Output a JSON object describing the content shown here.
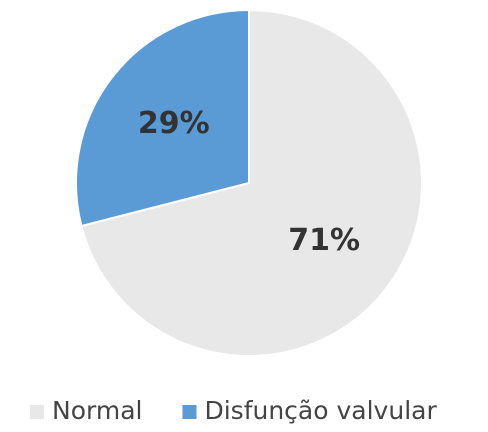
{
  "chart_data": {
    "type": "pie",
    "categories": [
      "Normal",
      "Disfunção valvular"
    ],
    "values": [
      71,
      29
    ],
    "value_labels": [
      "71%",
      "29%"
    ],
    "colors": [
      "#e8e8e8",
      "#5b9bd5"
    ],
    "legend": "bottom"
  }
}
